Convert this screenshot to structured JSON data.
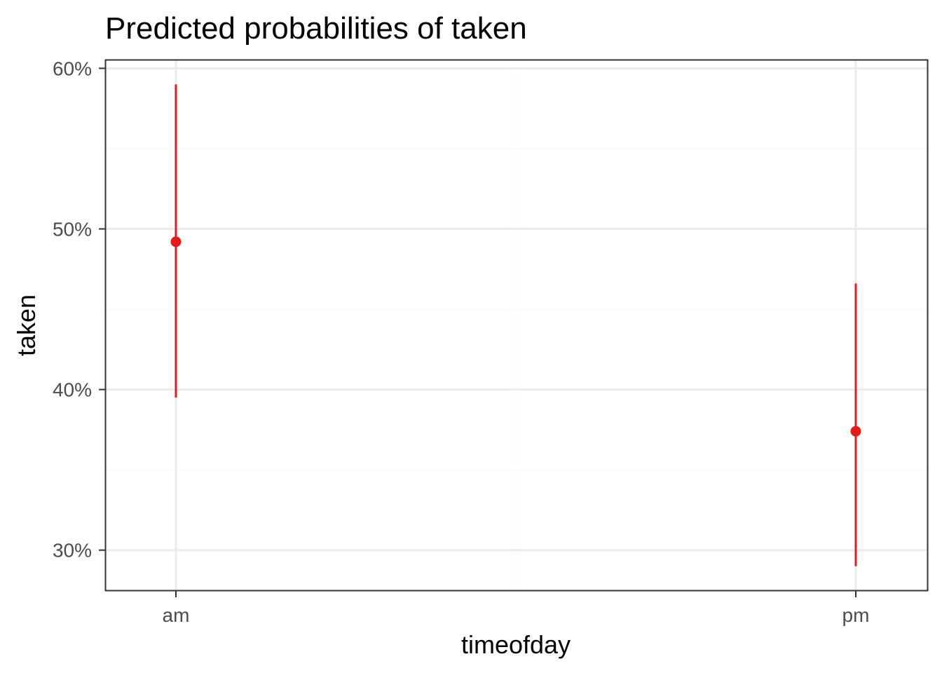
{
  "chart_data": {
    "type": "scatter",
    "title": "Predicted probabilities of taken",
    "xlabel": "timeofday",
    "ylabel": "taken",
    "categories": [
      "am",
      "pm"
    ],
    "series": [
      {
        "points": [
          {
            "x": "am",
            "y": 49.2,
            "lower": 39.5,
            "upper": 59.0
          },
          {
            "x": "pm",
            "y": 37.4,
            "lower": 29.0,
            "upper": 46.6
          }
        ]
      }
    ],
    "ylim": [
      27.5,
      60.5
    ],
    "y_ticks": [
      30,
      40,
      50,
      60
    ],
    "y_tick_labels": [
      "30%",
      "40%",
      "50%",
      "60%"
    ],
    "grid": true,
    "legend": "none",
    "colors": {
      "series": "#e41a1c",
      "major_grid": "#ebebeb",
      "minor_grid": "#f4f4f4",
      "panel_border": "#333333"
    }
  }
}
